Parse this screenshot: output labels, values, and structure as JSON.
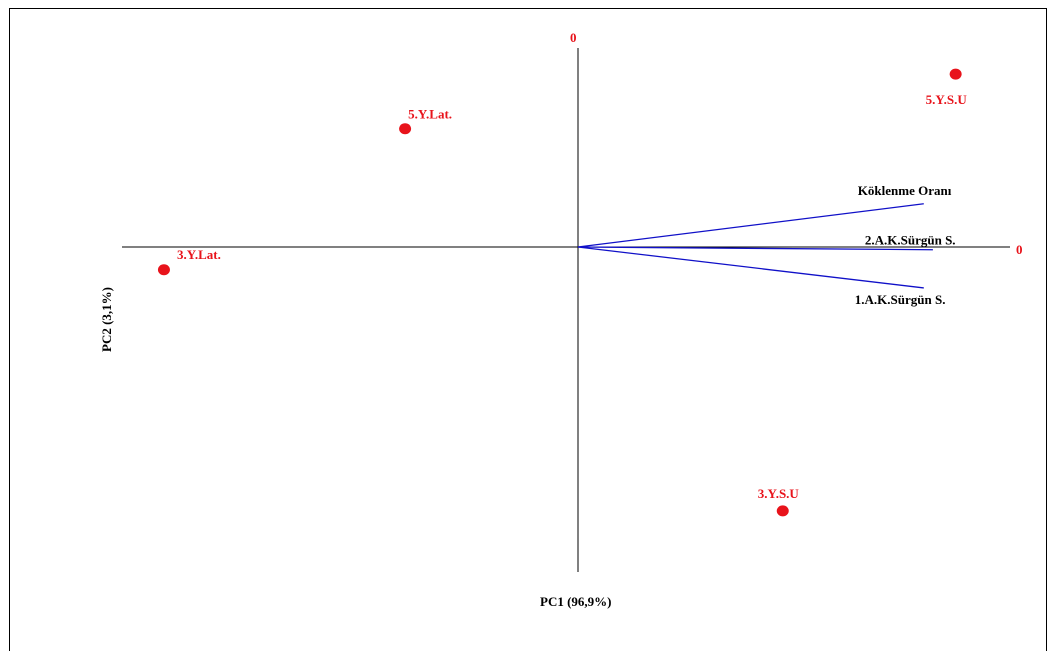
{
  "chart_data": {
    "type": "scatter",
    "xlabel": "PC1 (96,9%)",
    "ylabel": "PC2 (3,1%)",
    "axis_zero_x": "0",
    "axis_zero_y": "0",
    "colors": {
      "points": "#e8131b",
      "vectors": "#1010c8",
      "axes": "#000000"
    },
    "xlim": [
      -1.0,
      0.95
    ],
    "ylim": [
      -0.75,
      0.45
    ],
    "points": [
      {
        "label": "5.Y.Lat.",
        "x": -0.38,
        "y": 0.26
      },
      {
        "label": "5.Y.S.U",
        "x": 0.83,
        "y": 0.38
      },
      {
        "label": "3.Y.Lat.",
        "x": -0.91,
        "y": -0.05
      },
      {
        "label": "3.Y.S.U",
        "x": 0.45,
        "y": -0.58
      }
    ],
    "vectors": [
      {
        "label": "Köklenme Oranı",
        "x": 0.76,
        "y": 0.095
      },
      {
        "label": "2.A.K.Sürgün S.",
        "x": 0.78,
        "y": -0.006
      },
      {
        "label": "1.A.K.Sürgün S.",
        "x": 0.76,
        "y": -0.09
      }
    ]
  }
}
